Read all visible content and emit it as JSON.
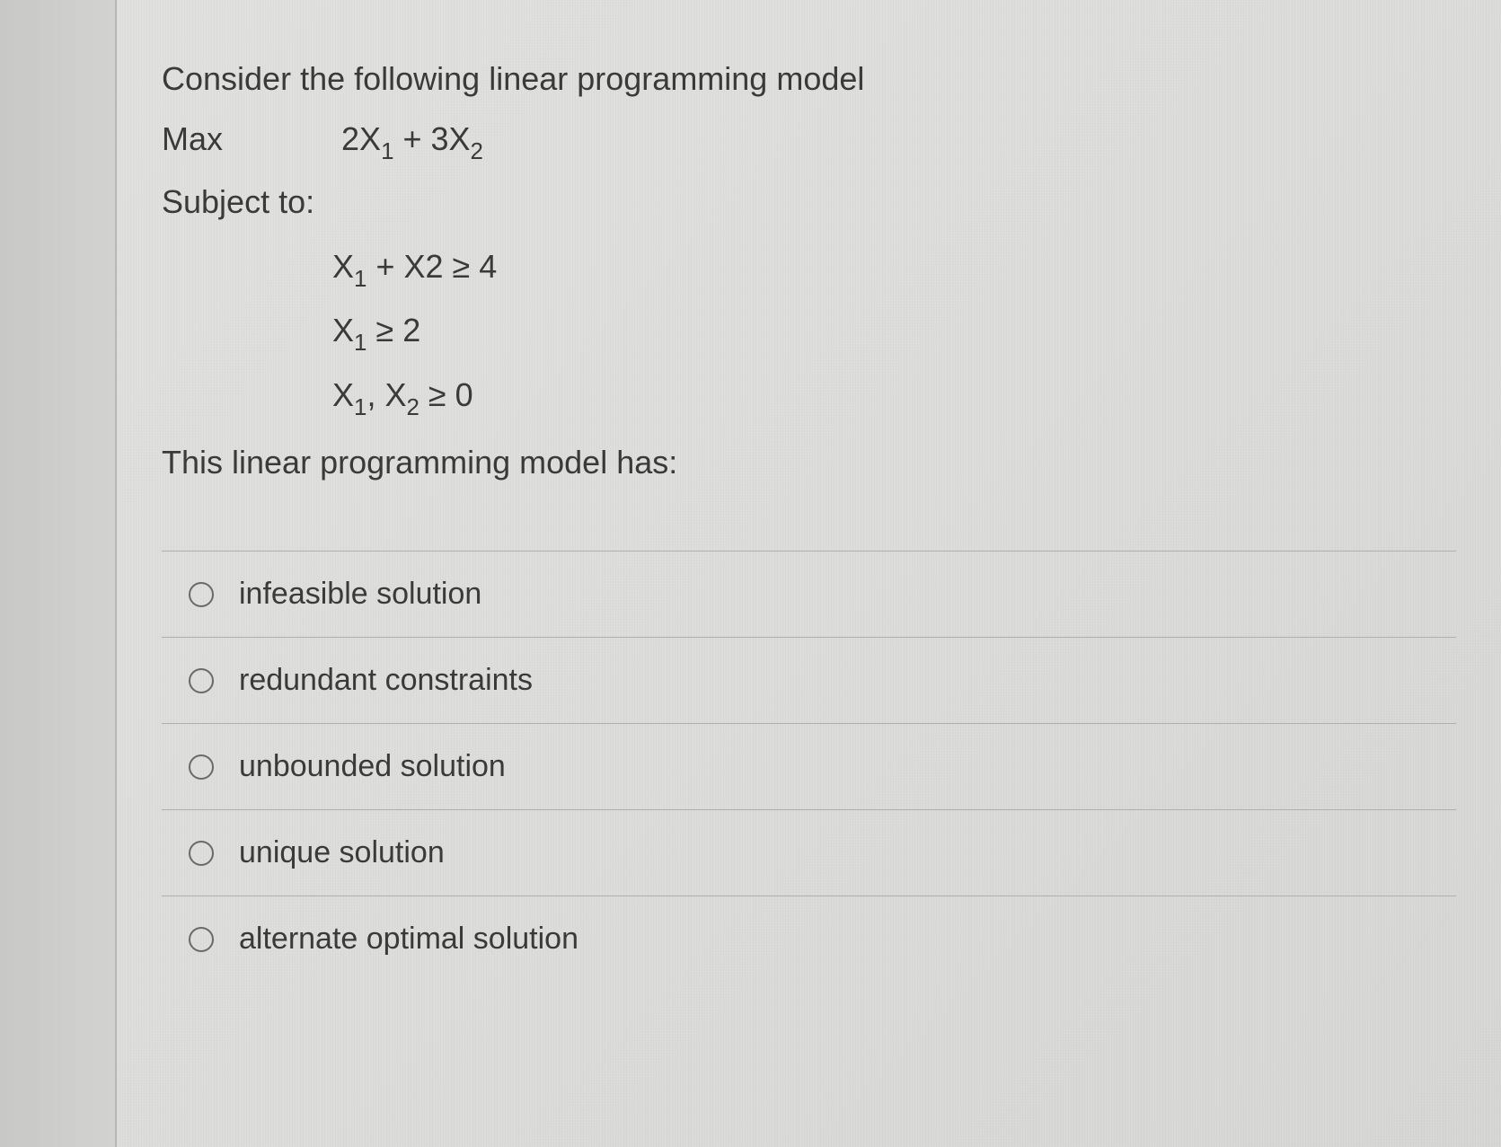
{
  "question": {
    "intro": "Consider the following linear programming model",
    "objective_label": "Max",
    "objective_expr_html": "2X<sub>1</sub> + 3X<sub>2</sub>",
    "subject_to": "Subject to:",
    "constraints_html": [
      "X<sub>1</sub> + X2 ≥ 4",
      "X<sub>1</sub> ≥ 2",
      "X<sub>1</sub>, X<sub>2</sub> ≥ 0"
    ],
    "conclusion": "This linear programming model has:"
  },
  "options": [
    {
      "label": "infeasible solution"
    },
    {
      "label": "redundant constraints"
    },
    {
      "label": "unbounded solution"
    },
    {
      "label": "unique solution"
    },
    {
      "label": "alternate optimal solution"
    }
  ],
  "styling": {
    "background_color": "#dcdcda",
    "text_color": "#3a3a3a",
    "border_color": "#b0b0ae",
    "radio_border_color": "#6a6a6a",
    "font_size_question": 36,
    "font_size_option": 34,
    "radio_size": 28
  }
}
